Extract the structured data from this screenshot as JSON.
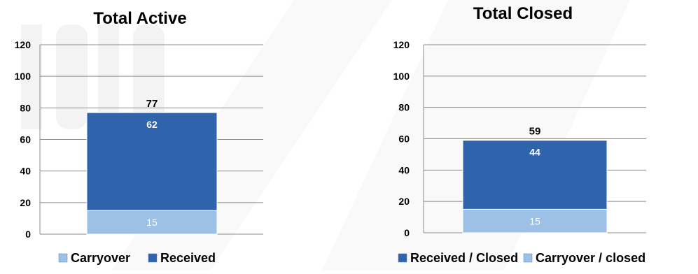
{
  "chart_data": [
    {
      "type": "bar",
      "stacked": true,
      "title": "Total Active",
      "ylim": [
        0,
        120
      ],
      "yticks": [
        0,
        20,
        40,
        60,
        80,
        100,
        120
      ],
      "grid": true,
      "legend_position": "bottom",
      "series": [
        {
          "name": "Carryover",
          "values": [
            15
          ],
          "color": "#9cc0e6"
        },
        {
          "name": "Received",
          "values": [
            62
          ],
          "color": "#2f64ad"
        }
      ],
      "stack_order": [
        "Carryover",
        "Received"
      ],
      "legend_order": [
        "Carryover",
        "Received"
      ],
      "total": 77
    },
    {
      "type": "bar",
      "stacked": true,
      "title": "Total Closed",
      "ylim": [
        0,
        120
      ],
      "yticks": [
        0,
        20,
        40,
        60,
        80,
        100,
        120
      ],
      "grid": true,
      "legend_position": "bottom",
      "series": [
        {
          "name": "Carryover / closed",
          "values": [
            15
          ],
          "color": "#9cc0e6"
        },
        {
          "name": "Received / Closed",
          "values": [
            44
          ],
          "color": "#2f64ad"
        }
      ],
      "stack_order": [
        "Carryover / closed",
        "Received / Closed"
      ],
      "legend_order": [
        "Received / Closed",
        "Carryover / closed"
      ],
      "total": 59
    }
  ]
}
